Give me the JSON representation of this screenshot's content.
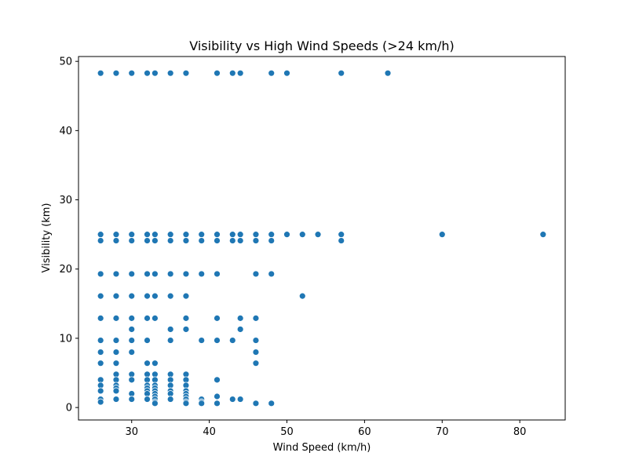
{
  "chart_data": {
    "type": "scatter",
    "title": "Visibility vs High Wind Speeds (>24 km/h)",
    "xlabel": "Wind Speed (km/h)",
    "ylabel": "Visibility (km)",
    "xlim": [
      23.15,
      85.85
    ],
    "ylim": [
      -1.8,
      50.7
    ],
    "xticks": [
      30,
      40,
      50,
      60,
      70,
      80
    ],
    "yticks": [
      0,
      10,
      20,
      30,
      40,
      50
    ],
    "grid": false,
    "color": "#1f77b4",
    "points": [
      [
        26,
        48.3
      ],
      [
        28,
        48.3
      ],
      [
        30,
        48.3
      ],
      [
        32,
        48.3
      ],
      [
        33,
        48.3
      ],
      [
        35,
        48.3
      ],
      [
        37,
        48.3
      ],
      [
        41,
        48.3
      ],
      [
        43,
        48.3
      ],
      [
        44,
        48.3
      ],
      [
        48,
        48.3
      ],
      [
        50,
        48.3
      ],
      [
        57,
        48.3
      ],
      [
        63,
        48.3
      ],
      [
        26,
        25
      ],
      [
        28,
        25
      ],
      [
        30,
        25
      ],
      [
        32,
        25
      ],
      [
        33,
        25
      ],
      [
        35,
        25
      ],
      [
        37,
        25
      ],
      [
        39,
        25
      ],
      [
        41,
        25
      ],
      [
        43,
        25
      ],
      [
        44,
        25
      ],
      [
        46,
        25
      ],
      [
        48,
        25
      ],
      [
        50,
        25
      ],
      [
        52,
        25
      ],
      [
        54,
        25
      ],
      [
        57,
        25
      ],
      [
        70,
        25
      ],
      [
        83,
        25
      ],
      [
        26,
        24.1
      ],
      [
        28,
        24.1
      ],
      [
        30,
        24.1
      ],
      [
        32,
        24.1
      ],
      [
        33,
        24.1
      ],
      [
        35,
        24.1
      ],
      [
        37,
        24.1
      ],
      [
        39,
        24.1
      ],
      [
        41,
        24.1
      ],
      [
        43,
        24.1
      ],
      [
        44,
        24.1
      ],
      [
        46,
        24.1
      ],
      [
        48,
        24.1
      ],
      [
        57,
        24.1
      ],
      [
        26,
        19.3
      ],
      [
        28,
        19.3
      ],
      [
        30,
        19.3
      ],
      [
        32,
        19.3
      ],
      [
        33,
        19.3
      ],
      [
        35,
        19.3
      ],
      [
        37,
        19.3
      ],
      [
        39,
        19.3
      ],
      [
        41,
        19.3
      ],
      [
        46,
        19.3
      ],
      [
        48,
        19.3
      ],
      [
        26,
        16.1
      ],
      [
        28,
        16.1
      ],
      [
        30,
        16.1
      ],
      [
        32,
        16.1
      ],
      [
        33,
        16.1
      ],
      [
        35,
        16.1
      ],
      [
        37,
        16.1
      ],
      [
        52,
        16.1
      ],
      [
        26,
        12.9
      ],
      [
        28,
        12.9
      ],
      [
        30,
        12.9
      ],
      [
        32,
        12.9
      ],
      [
        33,
        12.9
      ],
      [
        37,
        12.9
      ],
      [
        41,
        12.9
      ],
      [
        44,
        12.9
      ],
      [
        46,
        12.9
      ],
      [
        30,
        11.3
      ],
      [
        35,
        11.3
      ],
      [
        37,
        11.3
      ],
      [
        44,
        11.3
      ],
      [
        26,
        9.7
      ],
      [
        28,
        9.7
      ],
      [
        30,
        9.7
      ],
      [
        32,
        9.7
      ],
      [
        35,
        9.7
      ],
      [
        39,
        9.7
      ],
      [
        41,
        9.7
      ],
      [
        43,
        9.7
      ],
      [
        46,
        9.7
      ],
      [
        26,
        8
      ],
      [
        28,
        8
      ],
      [
        30,
        8
      ],
      [
        46,
        8
      ],
      [
        26,
        6.4
      ],
      [
        28,
        6.4
      ],
      [
        32,
        6.4
      ],
      [
        33,
        6.4
      ],
      [
        46,
        6.4
      ],
      [
        28,
        4.8
      ],
      [
        30,
        4.8
      ],
      [
        32,
        4.8
      ],
      [
        33,
        4.8
      ],
      [
        35,
        4.8
      ],
      [
        37,
        4.8
      ],
      [
        26,
        4
      ],
      [
        28,
        4
      ],
      [
        30,
        4
      ],
      [
        32,
        4
      ],
      [
        33,
        4
      ],
      [
        35,
        4
      ],
      [
        37,
        4
      ],
      [
        41,
        4
      ],
      [
        26,
        3.2
      ],
      [
        28,
        3.2
      ],
      [
        32,
        3.2
      ],
      [
        33,
        3.2
      ],
      [
        35,
        3.2
      ],
      [
        37,
        3.2
      ],
      [
        28,
        2.8
      ],
      [
        32,
        2.8
      ],
      [
        33,
        2.8
      ],
      [
        26,
        2.4
      ],
      [
        28,
        2.4
      ],
      [
        32,
        2.4
      ],
      [
        33,
        2.4
      ],
      [
        35,
        2.4
      ],
      [
        37,
        2.4
      ],
      [
        30,
        2
      ],
      [
        32,
        2
      ],
      [
        33,
        2
      ],
      [
        35,
        2
      ],
      [
        37,
        2
      ],
      [
        33,
        1.6
      ],
      [
        37,
        1.6
      ],
      [
        41,
        1.6
      ],
      [
        26,
        1.2
      ],
      [
        28,
        1.2
      ],
      [
        30,
        1.2
      ],
      [
        32,
        1.2
      ],
      [
        33,
        1.2
      ],
      [
        35,
        1.2
      ],
      [
        37,
        1.2
      ],
      [
        39,
        1.2
      ],
      [
        43,
        1.2
      ],
      [
        44,
        1.2
      ],
      [
        26,
        0.8
      ],
      [
        33,
        0.8
      ],
      [
        37,
        0.8
      ],
      [
        39,
        0.8
      ],
      [
        33,
        0.6
      ],
      [
        37,
        0.6
      ],
      [
        39,
        0.6
      ],
      [
        41,
        0.6
      ],
      [
        46,
        0.6
      ],
      [
        48,
        0.6
      ]
    ]
  }
}
